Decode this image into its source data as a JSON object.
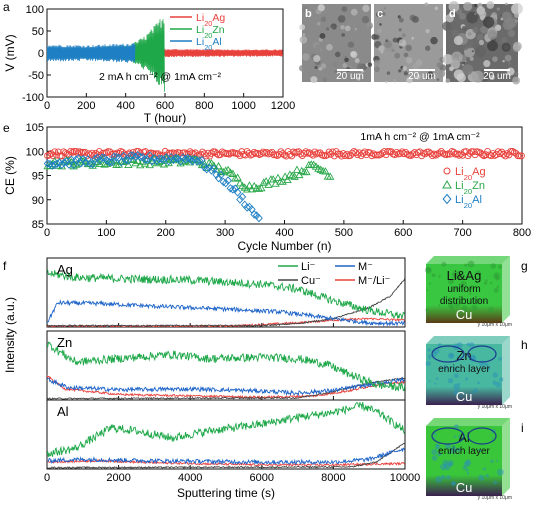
{
  "panel_labels": {
    "a": "a",
    "b": "b",
    "c": "c",
    "d": "d",
    "e": "e",
    "f": "f",
    "g": "g",
    "h": "h",
    "i": "i"
  },
  "sem_images": [
    {
      "label": "b",
      "scale": "20 um",
      "color": "#8a8a8a"
    },
    {
      "label": "c",
      "scale": "20 um",
      "color": "#9a9a9a"
    },
    {
      "label": "d",
      "scale": "20 um",
      "color": "#6a6a6a"
    }
  ],
  "tomography": [
    {
      "label": "g",
      "lines": [
        "Li&Ag",
        "uniform",
        "distribution"
      ],
      "base": "Cu",
      "top": "#39c640",
      "bottom": "#5a3b16",
      "axes": "y 10μm x 10μm"
    },
    {
      "label": "h",
      "lines": [
        "Zn",
        "enrich layer"
      ],
      "base": "Cu",
      "top": "#48b8a0",
      "bottom": "#3b1f4f",
      "axes": "y 10μm x 10μm"
    },
    {
      "label": "i",
      "lines": [
        "Al",
        "enrich layer"
      ],
      "base": "Cu",
      "top": "#3ac63a",
      "bottom": "#3b1f4f",
      "axes": "y 10μm x 10μm"
    }
  ],
  "chart_data": [
    {
      "type": "line",
      "panel": "a",
      "xlabel": "T (hour)",
      "ylabel": "V (mV)",
      "xlim": [
        0,
        1200
      ],
      "ylim": [
        -100,
        100
      ],
      "xticks": [
        0,
        200,
        400,
        600,
        800,
        1000,
        1200
      ],
      "yticks": [
        -100,
        -50,
        0,
        50,
        100
      ],
      "annotation": "2 mA h cm⁻²  @  1mA cm⁻²",
      "legend_position": "top-right",
      "series": [
        {
          "name": "Li20Ag",
          "color": "#e8413c",
          "x_range": [
            0,
            1200
          ],
          "amplitude": [
            [
              0,
              12
            ],
            [
              400,
              10
            ],
            [
              1200,
              8
            ]
          ]
        },
        {
          "name": "Li20Zn",
          "color": "#1fa84a",
          "x_range": [
            0,
            600
          ],
          "amplitude": [
            [
              0,
              14
            ],
            [
              200,
              12
            ],
            [
              420,
              18
            ],
            [
              500,
              40
            ],
            [
              560,
              70
            ],
            [
              600,
              95
            ]
          ]
        },
        {
          "name": "Li20Al",
          "color": "#1e7fc4",
          "x_range": [
            0,
            450
          ],
          "amplitude": [
            [
              0,
              20
            ],
            [
              200,
              18
            ],
            [
              400,
              22
            ],
            [
              450,
              25
            ]
          ]
        }
      ]
    },
    {
      "type": "scatter",
      "panel": "e",
      "xlabel": "Cycle Number (n)",
      "ylabel": "CE (%)",
      "xlim": [
        0,
        800
      ],
      "ylim": [
        85,
        105
      ],
      "xticks": [
        0,
        100,
        200,
        300,
        400,
        500,
        600,
        700,
        800
      ],
      "yticks": [
        85,
        90,
        95,
        100,
        105
      ],
      "annotation": "1mA h cm⁻²  @  1mA cm⁻²",
      "legend_position": "middle-right",
      "series": [
        {
          "name": "Li20Ag",
          "marker": "circle",
          "color": "#e8413c",
          "x_range": [
            0,
            800
          ],
          "mean": [
            [
              0,
              99.5
            ],
            [
              800,
              99.5
            ]
          ]
        },
        {
          "name": "Li20Zn",
          "marker": "triangle",
          "color": "#2aa84a",
          "x_range": [
            0,
            480
          ],
          "mean": [
            [
              0,
              97.5
            ],
            [
              250,
              98.0
            ],
            [
              300,
              96
            ],
            [
              340,
              92.5
            ],
            [
              360,
              93
            ],
            [
              400,
              94.5
            ],
            [
              450,
              97
            ],
            [
              480,
              95
            ]
          ]
        },
        {
          "name": "Li20Al",
          "marker": "diamond",
          "color": "#1e7fc4",
          "x_range": [
            0,
            360
          ],
          "mean": [
            [
              0,
              97.5
            ],
            [
              150,
              98.5
            ],
            [
              250,
              98.5
            ],
            [
              300,
              94
            ],
            [
              330,
              90
            ],
            [
              350,
              87
            ],
            [
              360,
              86.5
            ]
          ]
        }
      ]
    },
    {
      "type": "line",
      "panel": "f",
      "xlabel": "Sputtering time (s)",
      "ylabel": "Intensity (a.u.)",
      "xlim": [
        0,
        10000
      ],
      "xticks": [
        0,
        2000,
        4000,
        6000,
        8000,
        10000
      ],
      "legend_position": "top-right",
      "legend": [
        {
          "name": "Li⁻",
          "color": "#1fa84a"
        },
        {
          "name": "M⁻",
          "color": "#1e64c8"
        },
        {
          "name": "Cu⁻",
          "color": "#444444"
        },
        {
          "name": "M⁻/Li⁻",
          "color": "#e8413c"
        }
      ],
      "subpanels": [
        {
          "label": "Ag",
          "Li": [
            [
              0,
              0.78
            ],
            [
              800,
              0.72
            ],
            [
              2000,
              0.7
            ],
            [
              4000,
              0.68
            ],
            [
              6000,
              0.62
            ],
            [
              7000,
              0.55
            ],
            [
              8000,
              0.38
            ],
            [
              9000,
              0.24
            ],
            [
              10000,
              0.15
            ]
          ],
          "M": [
            [
              0,
              0.06
            ],
            [
              300,
              0.35
            ],
            [
              1500,
              0.34
            ],
            [
              3000,
              0.3
            ],
            [
              5000,
              0.26
            ],
            [
              6500,
              0.22
            ],
            [
              8000,
              0.12
            ],
            [
              9000,
              0.06
            ],
            [
              10000,
              0.05
            ]
          ],
          "Cu": [
            [
              0,
              0.02
            ],
            [
              6000,
              0.02
            ],
            [
              7000,
              0.05
            ],
            [
              8000,
              0.12
            ],
            [
              9000,
              0.28
            ],
            [
              9600,
              0.45
            ],
            [
              10000,
              0.7
            ]
          ],
          "ratio": [
            [
              0,
              0.01
            ],
            [
              5000,
              0.01
            ],
            [
              7000,
              0.06
            ],
            [
              8000,
              0.1
            ],
            [
              9000,
              0.12
            ],
            [
              10000,
              0.1
            ]
          ]
        },
        {
          "label": "Zn",
          "Li": [
            [
              0,
              0.82
            ],
            [
              800,
              0.55
            ],
            [
              2000,
              0.6
            ],
            [
              3500,
              0.66
            ],
            [
              4500,
              0.6
            ],
            [
              6000,
              0.62
            ],
            [
              7000,
              0.6
            ],
            [
              7800,
              0.52
            ],
            [
              8500,
              0.36
            ],
            [
              9200,
              0.22
            ],
            [
              10000,
              0.18
            ]
          ],
          "M": [
            [
              0,
              0.3
            ],
            [
              600,
              0.18
            ],
            [
              2000,
              0.15
            ],
            [
              4000,
              0.16
            ],
            [
              6000,
              0.13
            ],
            [
              7000,
              0.1
            ],
            [
              8000,
              0.14
            ],
            [
              9000,
              0.22
            ],
            [
              10000,
              0.3
            ]
          ],
          "Cu": [
            [
              0,
              0.02
            ],
            [
              7000,
              0.03
            ],
            [
              8000,
              0.12
            ],
            [
              9000,
              0.25
            ],
            [
              10000,
              0.32
            ]
          ],
          "ratio": [
            [
              0,
              0.35
            ],
            [
              500,
              0.16
            ],
            [
              2000,
              0.08
            ],
            [
              6000,
              0.04
            ],
            [
              7500,
              0.06
            ],
            [
              8500,
              0.14
            ],
            [
              9200,
              0.22
            ],
            [
              10000,
              0.26
            ]
          ]
        },
        {
          "label": "Al",
          "Li": [
            [
              0,
              0.22
            ],
            [
              800,
              0.3
            ],
            [
              1800,
              0.6
            ],
            [
              2500,
              0.55
            ],
            [
              3500,
              0.45
            ],
            [
              4500,
              0.55
            ],
            [
              6000,
              0.65
            ],
            [
              7000,
              0.75
            ],
            [
              8000,
              0.82
            ],
            [
              8800,
              0.92
            ],
            [
              9300,
              0.8
            ],
            [
              10000,
              0.55
            ]
          ],
          "M": [
            [
              0,
              0.12
            ],
            [
              1000,
              0.14
            ],
            [
              3000,
              0.12
            ],
            [
              6000,
              0.1
            ],
            [
              8000,
              0.1
            ],
            [
              9000,
              0.14
            ],
            [
              10000,
              0.3
            ]
          ],
          "Cu": [
            [
              0,
              0.02
            ],
            [
              8500,
              0.03
            ],
            [
              9200,
              0.1
            ],
            [
              10000,
              0.38
            ]
          ],
          "ratio": [
            [
              0,
              0.1
            ],
            [
              1500,
              0.12
            ],
            [
              3000,
              0.09
            ],
            [
              6000,
              0.06
            ],
            [
              8000,
              0.06
            ],
            [
              10000,
              0.08
            ]
          ]
        }
      ]
    }
  ]
}
